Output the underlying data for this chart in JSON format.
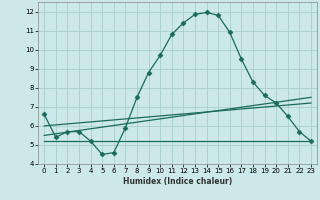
{
  "xlabel": "Humidex (Indice chaleur)",
  "xlim": [
    -0.5,
    23.5
  ],
  "ylim": [
    4,
    12.5
  ],
  "yticks": [
    4,
    5,
    6,
    7,
    8,
    9,
    10,
    11,
    12
  ],
  "xticks": [
    0,
    1,
    2,
    3,
    4,
    5,
    6,
    7,
    8,
    9,
    10,
    11,
    12,
    13,
    14,
    15,
    16,
    17,
    18,
    19,
    20,
    21,
    22,
    23
  ],
  "bg_color": "#cce8e8",
  "line_color": "#1a6b5e",
  "grid_color": "#aacece",
  "line1_x": [
    0,
    1,
    2,
    3,
    4,
    5,
    6,
    7,
    8,
    9,
    10,
    11,
    12,
    13,
    14,
    15,
    16,
    17,
    18,
    19,
    20,
    21,
    22,
    23
  ],
  "line1_y": [
    6.6,
    5.4,
    5.7,
    5.7,
    5.2,
    4.5,
    4.6,
    5.9,
    7.5,
    8.8,
    9.7,
    10.8,
    11.4,
    11.85,
    11.95,
    11.8,
    10.9,
    9.5,
    8.3,
    7.6,
    7.2,
    6.5,
    5.7,
    5.2
  ],
  "line2_x": [
    0,
    15,
    23
  ],
  "line2_y": [
    5.2,
    5.2,
    5.2
  ],
  "line3_x": [
    0,
    23
  ],
  "line3_y": [
    5.5,
    7.5
  ],
  "line4_x": [
    0,
    23
  ],
  "line4_y": [
    6.0,
    7.2
  ]
}
